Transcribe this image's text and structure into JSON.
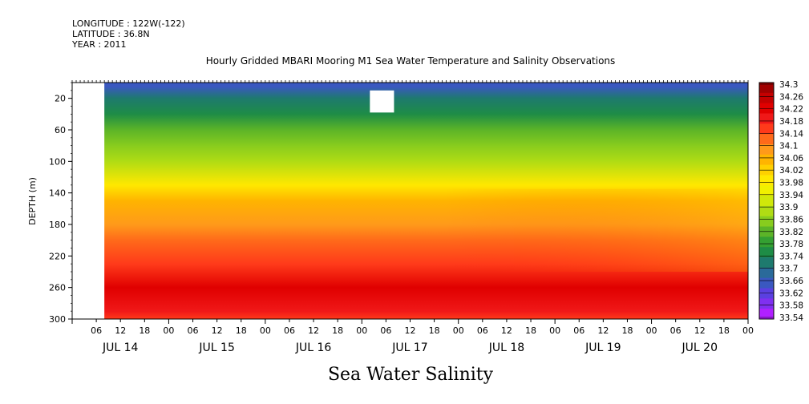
{
  "header": {
    "longitude": "LONGITUDE : 122W(-122)",
    "latitude": "LATITUDE : 36.8N",
    "year": "YEAR : 2011"
  },
  "chart_data": {
    "type": "heatmap",
    "title": "Hourly Gridded MBARI Mooring M1 Sea Water Temperature and Salinity Observations",
    "xlabel": "Sea Water Salinity",
    "ylabel": "DEPTH (m)",
    "ylim": [
      300,
      0
    ],
    "y_ticks": [
      "20",
      "60",
      "100",
      "140",
      "180",
      "220",
      "260",
      "300"
    ],
    "x_hour_ticks": [
      "06",
      "12",
      "18",
      "00",
      "06",
      "12",
      "18",
      "00",
      "06",
      "12",
      "18",
      "00",
      "06",
      "12",
      "18",
      "00",
      "06",
      "12",
      "18",
      "00",
      "06",
      "12",
      "18",
      "00",
      "06",
      "12",
      "18",
      "00"
    ],
    "x_day_labels": [
      "JUL 14",
      "JUL 15",
      "JUL 16",
      "JUL 17",
      "JUL 18",
      "JUL 19",
      "JUL 20"
    ],
    "colorbar_levels": [
      "34.3",
      "34.26",
      "34.22",
      "34.18",
      "34.14",
      "34.1",
      "34.06",
      "34.02",
      "33.98",
      "33.94",
      "33.9",
      "33.86",
      "33.82",
      "33.78",
      "33.74",
      "33.7",
      "33.66",
      "33.62",
      "33.58",
      "33.54"
    ],
    "colorbar_colors": [
      "#a00000",
      "#c40000",
      "#e00000",
      "#f01818",
      "#ff3a1a",
      "#ff6a1a",
      "#ff9a1a",
      "#ffb400",
      "#ffd000",
      "#ffe800",
      "#f0f000",
      "#d0e80a",
      "#b0dc14",
      "#88cc1e",
      "#5cb428",
      "#34a032",
      "#1e8c46",
      "#1e7a6e",
      "#2a6a9a",
      "#3a58c0",
      "#5a40e0",
      "#8030f0",
      "#b020ff"
    ],
    "profile": [
      {
        "depth": 5,
        "value": 33.66
      },
      {
        "depth": 20,
        "value": 33.7
      },
      {
        "depth": 40,
        "value": 33.76
      },
      {
        "depth": 60,
        "value": 33.82
      },
      {
        "depth": 80,
        "value": 33.86
      },
      {
        "depth": 100,
        "value": 33.9
      },
      {
        "depth": 130,
        "value": 33.98
      },
      {
        "depth": 150,
        "value": 34.06
      },
      {
        "depth": 180,
        "value": 34.1
      },
      {
        "depth": 200,
        "value": 34.12
      },
      {
        "depth": 230,
        "value": 34.16
      },
      {
        "depth": 260,
        "value": 34.22
      },
      {
        "depth": 290,
        "value": 34.18
      },
      {
        "depth": 300,
        "value": 34.16
      }
    ],
    "missing_data": [
      {
        "from_hour": 0,
        "to_hour": 8,
        "depth_from": 0,
        "depth_to": 300
      },
      {
        "from_hour": 74,
        "to_hour": 80,
        "depth_from": 10,
        "depth_to": 38
      }
    ]
  }
}
